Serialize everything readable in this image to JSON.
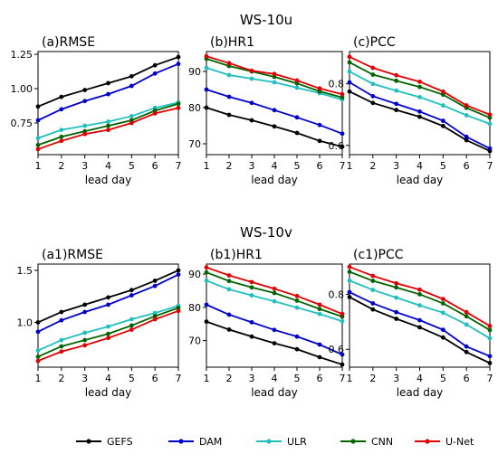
{
  "figure": {
    "row_titles": [
      "WS-10u",
      "WS-10v"
    ]
  },
  "legend": {
    "items": [
      {
        "name": "GEFS",
        "color": "#000000"
      },
      {
        "name": "DAM",
        "color": "#0000cc"
      },
      {
        "name": "ULR",
        "color": "#20c0c0"
      },
      {
        "name": "CNN",
        "color": "#006400"
      },
      {
        "name": "U-Net",
        "color": "#e00000"
      }
    ]
  },
  "chart_data": [
    {
      "type": "line",
      "title": "(a)RMSE",
      "xlabel": "lead day",
      "ylabel": "",
      "x": [
        1,
        2,
        3,
        4,
        5,
        6,
        7
      ],
      "xlim": [
        1,
        7
      ],
      "ylim": [
        0.52,
        1.27
      ],
      "yticks": [
        0.75,
        1.0,
        1.25
      ],
      "ytick_labels": [
        "0.75",
        "1.00",
        "1.25"
      ],
      "series": [
        {
          "name": "GEFS",
          "values": [
            0.87,
            0.94,
            0.99,
            1.04,
            1.09,
            1.17,
            1.23
          ]
        },
        {
          "name": "DAM",
          "values": [
            0.77,
            0.85,
            0.91,
            0.96,
            1.02,
            1.11,
            1.18
          ]
        },
        {
          "name": "ULR",
          "values": [
            0.64,
            0.7,
            0.73,
            0.76,
            0.8,
            0.86,
            0.9
          ]
        },
        {
          "name": "CNN",
          "values": [
            0.59,
            0.65,
            0.69,
            0.73,
            0.77,
            0.84,
            0.89
          ]
        },
        {
          "name": "U-Net",
          "values": [
            0.56,
            0.62,
            0.67,
            0.7,
            0.75,
            0.82,
            0.86
          ]
        }
      ]
    },
    {
      "type": "line",
      "title": "(b)HR1",
      "xlabel": "lead day",
      "ylabel": "",
      "x": [
        1,
        2,
        3,
        4,
        5,
        6,
        7
      ],
      "xlim": [
        1,
        7
      ],
      "ylim": [
        67,
        95.5
      ],
      "yticks": [
        70,
        80,
        90
      ],
      "ytick_labels": [
        "70",
        "80",
        "90"
      ],
      "series": [
        {
          "name": "GEFS",
          "values": [
            80,
            78,
            76.5,
            74.8,
            73,
            70.8,
            69.2
          ]
        },
        {
          "name": "DAM",
          "values": [
            85,
            83,
            81.3,
            79.3,
            77.3,
            75.2,
            72.8
          ]
        },
        {
          "name": "ULR",
          "values": [
            91,
            89,
            88,
            87,
            85.5,
            84,
            82.2
          ]
        },
        {
          "name": "CNN",
          "values": [
            93.5,
            91.5,
            90,
            88.5,
            86.7,
            84.5,
            82.8
          ]
        },
        {
          "name": "U-Net",
          "values": [
            94.2,
            92.3,
            90.2,
            89.3,
            87.5,
            85.3,
            83.7
          ]
        }
      ]
    },
    {
      "type": "line",
      "title": "(c)PCC",
      "xlabel": "lead day",
      "ylabel": "",
      "x": [
        1,
        2,
        3,
        4,
        5,
        6,
        7
      ],
      "xlim": [
        1,
        7
      ],
      "ylim": [
        0.57,
        0.905
      ],
      "yticks": [
        0.6,
        0.8
      ],
      "ytick_labels": [
        "0.6",
        "0.8"
      ],
      "series": [
        {
          "name": "GEFS",
          "values": [
            0.775,
            0.738,
            0.715,
            0.693,
            0.663,
            0.617,
            0.582
          ]
        },
        {
          "name": "DAM",
          "values": [
            0.805,
            0.76,
            0.735,
            0.71,
            0.68,
            0.628,
            0.59
          ]
        },
        {
          "name": "ULR",
          "values": [
            0.84,
            0.8,
            0.778,
            0.757,
            0.73,
            0.698,
            0.67
          ]
        },
        {
          "name": "CNN",
          "values": [
            0.87,
            0.83,
            0.81,
            0.79,
            0.765,
            0.722,
            0.69
          ]
        },
        {
          "name": "U-Net",
          "values": [
            0.888,
            0.852,
            0.828,
            0.807,
            0.775,
            0.73,
            0.7
          ]
        }
      ]
    },
    {
      "type": "line",
      "title": "(a1)RMSE",
      "xlabel": "lead day",
      "ylabel": "",
      "x": [
        1,
        2,
        3,
        4,
        5,
        6,
        7
      ],
      "xlim": [
        1,
        7
      ],
      "ylim": [
        0.57,
        1.56
      ],
      "yticks": [
        1.0,
        1.5
      ],
      "ytick_labels": [
        "1.0",
        "1.5"
      ],
      "series": [
        {
          "name": "GEFS",
          "values": [
            1.0,
            1.1,
            1.17,
            1.24,
            1.31,
            1.4,
            1.5
          ]
        },
        {
          "name": "DAM",
          "values": [
            0.91,
            1.02,
            1.1,
            1.17,
            1.26,
            1.35,
            1.46
          ]
        },
        {
          "name": "ULR",
          "values": [
            0.73,
            0.83,
            0.9,
            0.96,
            1.03,
            1.09,
            1.16
          ]
        },
        {
          "name": "CNN",
          "values": [
            0.67,
            0.77,
            0.83,
            0.89,
            0.97,
            1.06,
            1.14
          ]
        },
        {
          "name": "U-Net",
          "values": [
            0.63,
            0.72,
            0.78,
            0.85,
            0.93,
            1.03,
            1.11
          ]
        }
      ]
    },
    {
      "type": "line",
      "title": "(b1)HR1",
      "xlabel": "lead day",
      "ylabel": "",
      "x": [
        1,
        2,
        3,
        4,
        5,
        6,
        7
      ],
      "xlim": [
        1,
        7
      ],
      "ylim": [
        62,
        93
      ],
      "yticks": [
        70,
        80,
        90
      ],
      "ytick_labels": [
        "70",
        "80",
        "90"
      ],
      "series": [
        {
          "name": "GEFS",
          "values": [
            75.7,
            73.3,
            71.2,
            69.2,
            67.4,
            65.0,
            62.8
          ]
        },
        {
          "name": "DAM",
          "values": [
            80.8,
            77.8,
            75.5,
            73.2,
            71.2,
            68.8,
            65.8
          ]
        },
        {
          "name": "ULR",
          "values": [
            88.0,
            85.4,
            83.6,
            81.8,
            79.9,
            78.0,
            75.8
          ]
        },
        {
          "name": "CNN",
          "values": [
            90.5,
            87.9,
            86.0,
            84.3,
            82.0,
            79.5,
            77.2
          ]
        },
        {
          "name": "U-Net",
          "values": [
            92.0,
            89.6,
            87.6,
            85.6,
            83.4,
            80.8,
            78.0
          ]
        }
      ]
    },
    {
      "type": "line",
      "title": "(c1)PCC",
      "xlabel": "lead day",
      "ylabel": "",
      "x": [
        1,
        2,
        3,
        4,
        5,
        6,
        7
      ],
      "xlim": [
        1,
        7
      ],
      "ylim": [
        0.535,
        0.91
      ],
      "yticks": [
        0.6,
        0.8
      ],
      "ytick_labels": [
        "0.6",
        "0.8"
      ],
      "series": [
        {
          "name": "GEFS",
          "values": [
            0.79,
            0.745,
            0.711,
            0.68,
            0.643,
            0.59,
            0.55
          ]
        },
        {
          "name": "DAM",
          "values": [
            0.808,
            0.767,
            0.735,
            0.706,
            0.671,
            0.61,
            0.575
          ]
        },
        {
          "name": "ULR",
          "values": [
            0.85,
            0.816,
            0.788,
            0.76,
            0.733,
            0.69,
            0.64
          ]
        },
        {
          "name": "CNN",
          "values": [
            0.882,
            0.849,
            0.825,
            0.8,
            0.767,
            0.72,
            0.67
          ]
        },
        {
          "name": "U-Net",
          "values": [
            0.9,
            0.867,
            0.84,
            0.817,
            0.783,
            0.735,
            0.685
          ]
        }
      ]
    }
  ]
}
